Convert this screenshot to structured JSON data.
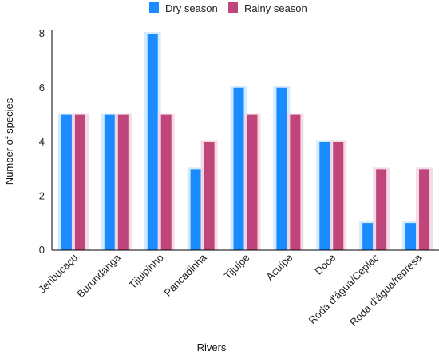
{
  "chart_data": {
    "type": "bar",
    "categories": [
      "Jeribucaçu",
      "Burundanga",
      "Tijuipinho",
      "Pancadinha",
      "Tijuípe",
      "Acuípe",
      "Doce",
      "Roda d'água/Ceplac",
      "Roda d'água/represa"
    ],
    "series": [
      {
        "name": "Dry season",
        "values": [
          5,
          5,
          8,
          3,
          6,
          6,
          4,
          1,
          1
        ],
        "color": "#1a8cff"
      },
      {
        "name": "Rainy season",
        "values": [
          5,
          5,
          5,
          4,
          5,
          5,
          4,
          3,
          3
        ],
        "color": "#c0457a"
      }
    ],
    "xlabel": "Rivers",
    "ylabel": "Number of species",
    "ylim": [
      0,
      8
    ],
    "yticks": [
      "0",
      "2",
      "4",
      "6",
      "8"
    ],
    "grid": false,
    "legend_position": "top-center",
    "bar_glow": true
  }
}
